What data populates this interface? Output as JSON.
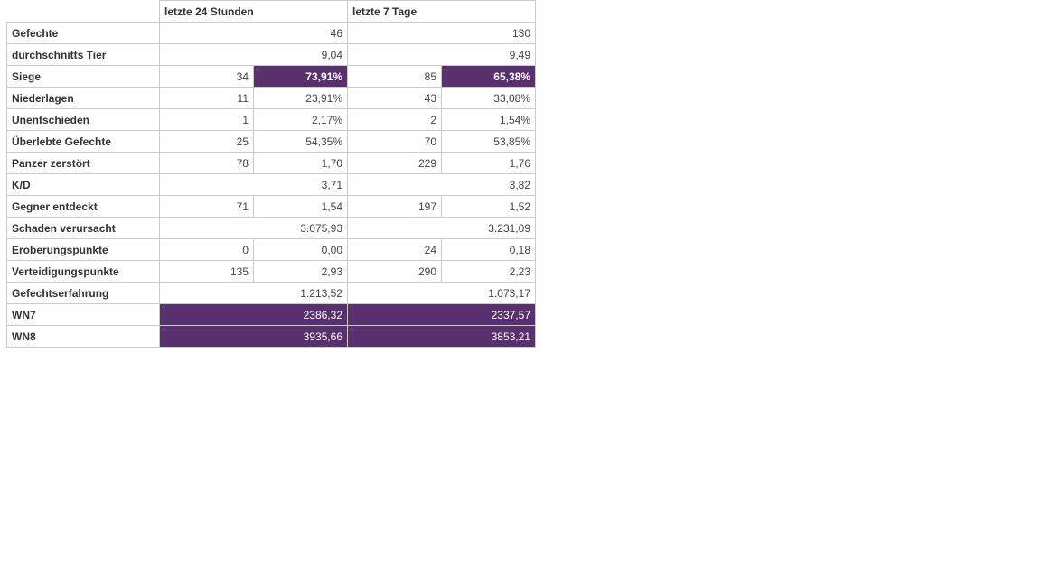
{
  "columns": {
    "day": "letzte 24 Stunden",
    "week": "letzte 7 Tage"
  },
  "rows": {
    "gefechte": {
      "label": "Gefechte",
      "day": "46",
      "week": "130"
    },
    "tier": {
      "label": "durchschnitts Tier",
      "day": "9,04",
      "week": "9,49"
    },
    "siege": {
      "label": "Siege",
      "day_abs": "34",
      "day_rel": "73,91%",
      "week_abs": "85",
      "week_rel": "65,38%"
    },
    "niederlagen": {
      "label": "Niederlagen",
      "day_abs": "11",
      "day_rel": "23,91%",
      "week_abs": "43",
      "week_rel": "33,08%"
    },
    "unentschieden": {
      "label": "Unentschieden",
      "day_abs": "1",
      "day_rel": "2,17%",
      "week_abs": "2",
      "week_rel": "1,54%"
    },
    "ueberlebt": {
      "label": "Überlebte Gefechte",
      "day_abs": "25",
      "day_rel": "54,35%",
      "week_abs": "70",
      "week_rel": "53,85%"
    },
    "zerstoert": {
      "label": "Panzer zerstört",
      "day_abs": "78",
      "day_rel": "1,70",
      "week_abs": "229",
      "week_rel": "1,76"
    },
    "kd": {
      "label": "K/D",
      "day": "3,71",
      "week": "3,82"
    },
    "entdeckt": {
      "label": "Gegner entdeckt",
      "day_abs": "71",
      "day_rel": "1,54",
      "week_abs": "197",
      "week_rel": "1,52"
    },
    "schaden": {
      "label": "Schaden verursacht",
      "day": "3.075,93",
      "week": "3.231,09"
    },
    "eroberung": {
      "label": "Eroberungspunkte",
      "day_abs": "0",
      "day_rel": "0,00",
      "week_abs": "24",
      "week_rel": "0,18"
    },
    "verteidigung": {
      "label": "Verteidigungspunkte",
      "day_abs": "135",
      "day_rel": "2,93",
      "week_abs": "290",
      "week_rel": "2,23"
    },
    "erfahrung": {
      "label": "Gefechtserfahrung",
      "day": "1.213,52",
      "week": "1.073,17"
    },
    "wn7": {
      "label": "WN7",
      "day": "2386,32",
      "week": "2337,57"
    },
    "wn8": {
      "label": "WN8",
      "day": "3935,66",
      "week": "3853,21"
    }
  },
  "colors": {
    "highlight": "#5a2f6f",
    "border": "#c9c9c9"
  }
}
